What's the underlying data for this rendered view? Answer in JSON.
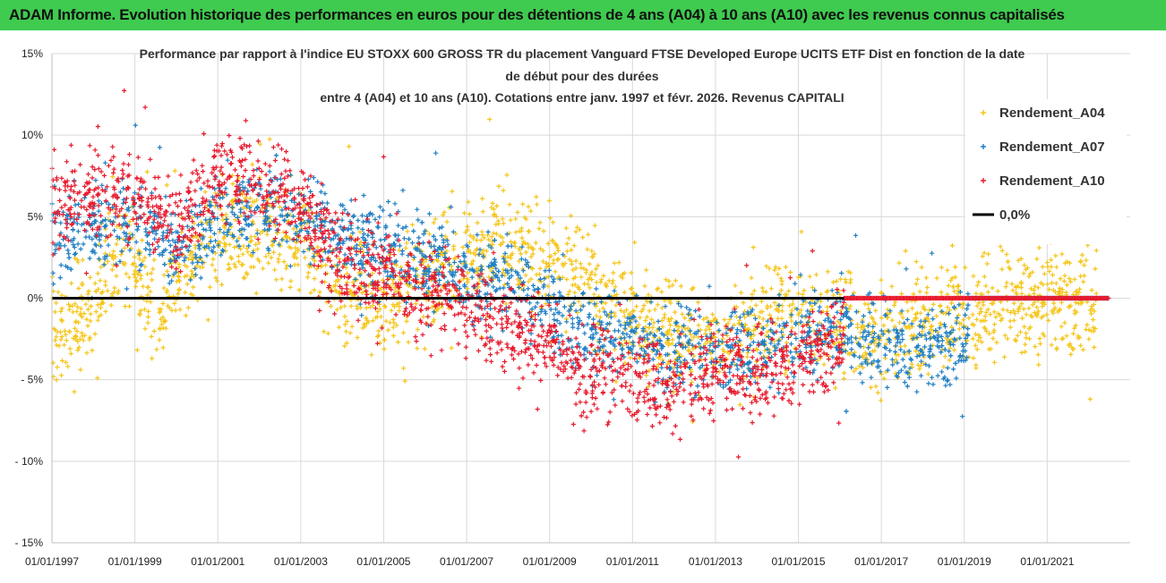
{
  "header": {
    "banner": "ADAM Informe. Evolution historique des performances en euros pour des détentions de 4 ans (A04) à 10 ans (A10) avec les revenus connus capitalisés"
  },
  "chart_data": {
    "type": "scatter",
    "title_lines": [
      "Performance par rapport à l'indice EU STOXX 600 GROSS TR  du placement Vanguard FTSE Developed Europe UCITS ETF Dist en fonction de la date",
      "de début pour des durées",
      "entre 4 (A04) et 10 ans (A10). Cotations entre janv. 1997 et févr. 2026. Revenus CAPITALI"
    ],
    "xlabel": "",
    "ylabel": "",
    "xlim": [
      1997.0,
      2023.0
    ],
    "ylim": [
      -15,
      15
    ],
    "x_ticks": [
      {
        "value": 1997,
        "label": "01/01/1997"
      },
      {
        "value": 1999,
        "label": "01/01/1999"
      },
      {
        "value": 2001,
        "label": "01/01/2001"
      },
      {
        "value": 2003,
        "label": "01/01/2003"
      },
      {
        "value": 2005,
        "label": "01/01/2005"
      },
      {
        "value": 2007,
        "label": "01/01/2007"
      },
      {
        "value": 2009,
        "label": "01/01/2009"
      },
      {
        "value": 2011,
        "label": "01/01/2011"
      },
      {
        "value": 2013,
        "label": "01/01/2013"
      },
      {
        "value": 2015,
        "label": "01/01/2015"
      },
      {
        "value": 2017,
        "label": "01/01/2017"
      },
      {
        "value": 2019,
        "label": "01/01/2019"
      },
      {
        "value": 2021,
        "label": "01/01/2021"
      }
    ],
    "y_ticks": [
      {
        "value": 15,
        "label": "15%"
      },
      {
        "value": 10,
        "label": "10%"
      },
      {
        "value": 5,
        "label": "5%"
      },
      {
        "value": 0,
        "label": "0%"
      },
      {
        "value": -5,
        "label": "- 5%"
      },
      {
        "value": -10,
        "label": "- 10%"
      },
      {
        "value": -15,
        "label": "- 15%"
      }
    ],
    "legend_position": "right",
    "series": [
      {
        "name": "Rendement_A04",
        "color": "#f5c518",
        "marker": "+",
        "x_range": [
          1997.0,
          2022.2
        ],
        "trend": [
          [
            1997.0,
            -1.5
          ],
          [
            1997.5,
            -2.0
          ],
          [
            1998.0,
            0.0
          ],
          [
            1998.5,
            3.0
          ],
          [
            1999.0,
            2.0
          ],
          [
            1999.5,
            -1.0
          ],
          [
            2000.0,
            1.0
          ],
          [
            2001.0,
            4.5
          ],
          [
            2002.0,
            4.0
          ],
          [
            2003.0,
            3.5
          ],
          [
            2004.0,
            0.5
          ],
          [
            2005.0,
            -0.5
          ],
          [
            2006.0,
            1.5
          ],
          [
            2007.0,
            2.5
          ],
          [
            2008.0,
            3.0
          ],
          [
            2009.0,
            2.5
          ],
          [
            2010.0,
            0.5
          ],
          [
            2011.0,
            -1.0
          ],
          [
            2012.0,
            -2.5
          ],
          [
            2013.0,
            -3.0
          ],
          [
            2014.0,
            -1.5
          ],
          [
            2015.0,
            -1.0
          ],
          [
            2016.0,
            -1.5
          ],
          [
            2017.0,
            -2.5
          ],
          [
            2018.0,
            -1.5
          ],
          [
            2019.0,
            -1.0
          ],
          [
            2020.0,
            0.0
          ],
          [
            2021.0,
            0.0
          ],
          [
            2022.2,
            -0.5
          ]
        ],
        "spread": 1.6
      },
      {
        "name": "Rendement_A07",
        "color": "#1f7fc4",
        "marker": "+",
        "x_range": [
          1997.0,
          2019.1
        ],
        "trend": [
          [
            1997.0,
            3.5
          ],
          [
            1998.0,
            4.5
          ],
          [
            1999.0,
            4.5
          ],
          [
            2000.0,
            3.0
          ],
          [
            2001.0,
            5.0
          ],
          [
            2002.0,
            5.5
          ],
          [
            2003.0,
            5.0
          ],
          [
            2004.0,
            3.5
          ],
          [
            2005.0,
            3.5
          ],
          [
            2006.0,
            2.5
          ],
          [
            2007.0,
            1.5
          ],
          [
            2008.0,
            1.0
          ],
          [
            2009.0,
            -0.5
          ],
          [
            2010.0,
            -2.0
          ],
          [
            2011.0,
            -2.5
          ],
          [
            2012.0,
            -3.0
          ],
          [
            2013.0,
            -3.5
          ],
          [
            2014.0,
            -3.0
          ],
          [
            2015.0,
            -2.5
          ],
          [
            2016.0,
            -2.0
          ],
          [
            2017.0,
            -2.5
          ],
          [
            2018.0,
            -3.0
          ],
          [
            2019.1,
            -2.5
          ]
        ],
        "spread": 1.3
      },
      {
        "name": "Rendement_A10",
        "color": "#e8192c",
        "marker": "+",
        "x_range": [
          1997.0,
          2016.1
        ],
        "trend": [
          [
            1997.0,
            5.5
          ],
          [
            1998.0,
            6.5
          ],
          [
            1999.0,
            6.0
          ],
          [
            2000.0,
            4.5
          ],
          [
            2001.0,
            7.5
          ],
          [
            2002.0,
            7.0
          ],
          [
            2003.0,
            5.5
          ],
          [
            2004.0,
            2.5
          ],
          [
            2005.0,
            1.5
          ],
          [
            2006.0,
            0.5
          ],
          [
            2007.0,
            -0.5
          ],
          [
            2008.0,
            -1.5
          ],
          [
            2009.0,
            -3.0
          ],
          [
            2010.0,
            -4.5
          ],
          [
            2011.0,
            -5.0
          ],
          [
            2012.0,
            -5.5
          ],
          [
            2013.0,
            -4.5
          ],
          [
            2014.0,
            -4.5
          ],
          [
            2015.0,
            -3.5
          ],
          [
            2016.1,
            -2.5
          ]
        ],
        "spread": 1.4
      },
      {
        "name": "0,0%",
        "color": "#000000",
        "type": "line",
        "y": 0
      }
    ],
    "notes": "Scatter values are estimated trends read off the figure; red and blue markers sit on 0% after their series ends (A10 red band 2016-2022.5)."
  }
}
